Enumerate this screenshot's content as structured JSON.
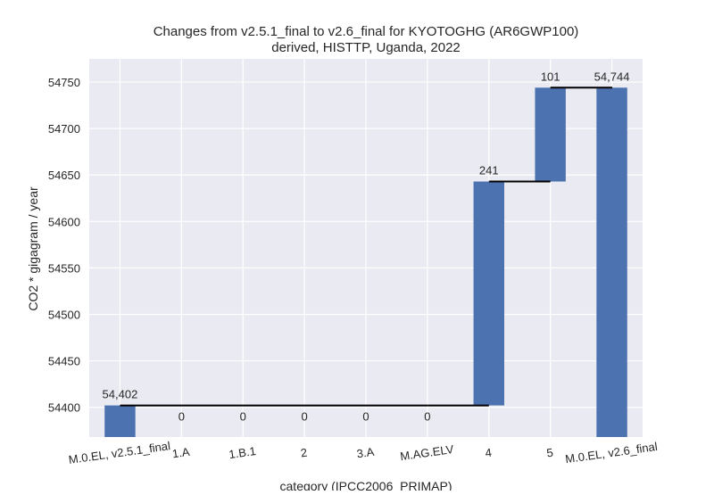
{
  "chart_data": {
    "type": "bar",
    "subtype": "waterfall",
    "title": "Changes from v2.5.1_final to v2.6_final for KYOTOGHG (AR6GWP100)",
    "subtitle": "derived, HISTTP, Uganda, 2022",
    "xlabel": "category (IPCC2006_PRIMAP)",
    "ylabel": "CO2 * gigagram / year",
    "ylim": [
      54368,
      54775
    ],
    "yticks": [
      54400,
      54450,
      54500,
      54550,
      54600,
      54650,
      54700,
      54750
    ],
    "categories": [
      "M.0.EL, v2.5.1_final",
      "1.A",
      "1.B.1",
      "2",
      "3.A",
      "M.AG.ELV",
      "4",
      "5",
      "M.0.EL, v2.6_final"
    ],
    "steps": [
      {
        "kind": "total",
        "value": 54402,
        "label": "54,402"
      },
      {
        "kind": "change",
        "value": 0,
        "label": "0"
      },
      {
        "kind": "change",
        "value": 0,
        "label": "0"
      },
      {
        "kind": "change",
        "value": 0,
        "label": "0"
      },
      {
        "kind": "change",
        "value": 0,
        "label": "0"
      },
      {
        "kind": "change",
        "value": 0,
        "label": "0"
      },
      {
        "kind": "change",
        "value": 241,
        "label": "241"
      },
      {
        "kind": "change",
        "value": 101,
        "label": "101"
      },
      {
        "kind": "total",
        "value": 54744,
        "label": "54,744"
      }
    ],
    "colors": {
      "bar": "#4c72b0",
      "background": "#eaeaf2",
      "grid": "#ffffff",
      "connector": "#000000"
    },
    "grid": true,
    "legend": "none"
  }
}
